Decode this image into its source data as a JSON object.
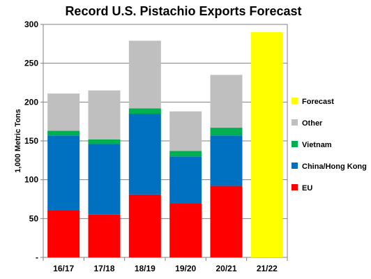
{
  "chart_data": {
    "type": "bar",
    "stacked": true,
    "title": "Record U.S. Pistachio Exports Forecast",
    "xlabel": "",
    "ylabel": "1,000 Metric Tons",
    "ylim": [
      0,
      300
    ],
    "yticks": [
      "-",
      "50",
      "100",
      "150",
      "200",
      "250",
      "300"
    ],
    "grid": true,
    "legend_position": "right",
    "categories": [
      "16/17",
      "17/18",
      "18/19",
      "19/20",
      "20/21",
      "21/22"
    ],
    "series": [
      {
        "name": "EU",
        "color": "#ff0000",
        "values": [
          61,
          55,
          81,
          70,
          92,
          0
        ]
      },
      {
        "name": "China/Hong Kong",
        "color": "#0070c0",
        "values": [
          96,
          91,
          104,
          60,
          65,
          0
        ]
      },
      {
        "name": "Vietnam",
        "color": "#00b050",
        "values": [
          6,
          6,
          7,
          7,
          10,
          0
        ]
      },
      {
        "name": "Other",
        "color": "#bfbfbf",
        "values": [
          48,
          63,
          87,
          51,
          68,
          0
        ]
      },
      {
        "name": "Forecast",
        "color": "#ffff00",
        "values": [
          0,
          0,
          0,
          0,
          0,
          290
        ]
      }
    ],
    "legend_order": [
      "Forecast",
      "Other",
      "Vietnam",
      "China/Hong Kong",
      "EU"
    ]
  }
}
